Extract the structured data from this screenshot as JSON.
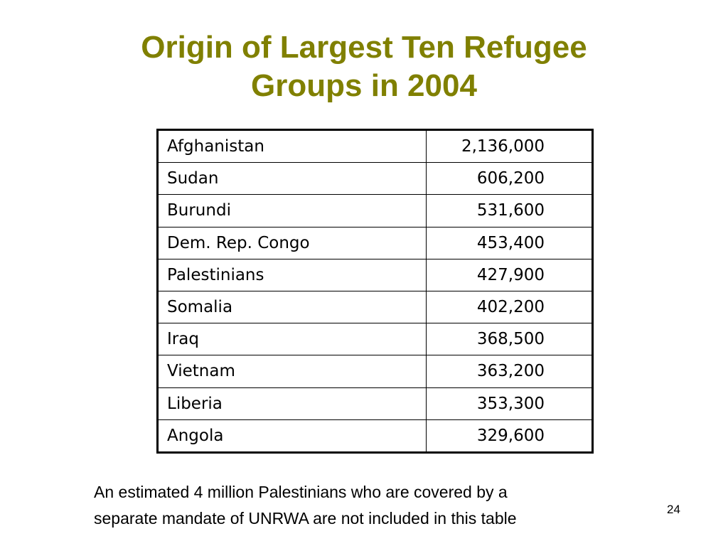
{
  "slide": {
    "title_line1": "Origin of Largest Ten Refugee",
    "title_line2": "Groups in 2004",
    "title_color": "#808000",
    "table": {
      "rows": [
        {
          "country": "Afghanistan",
          "value": "2,136,000"
        },
        {
          "country": "Sudan",
          "value": "606,200"
        },
        {
          "country": "Burundi",
          "value": "531,600"
        },
        {
          "country": "Dem. Rep. Congo",
          "value": "453,400"
        },
        {
          "country": "Palestinians",
          "value": "427,900"
        },
        {
          "country": "Somalia",
          "value": "402,200"
        },
        {
          "country": "Iraq",
          "value": "368,500"
        },
        {
          "country": "Vietnam",
          "value": "363,200"
        },
        {
          "country": "Liberia",
          "value": "353,300"
        },
        {
          "country": "Angola",
          "value": "329,600"
        }
      ]
    },
    "note_line1": "An estimated 4 million Palestinians who are covered by a",
    "note_line2": "separate mandate of UNRWA are not included in this table",
    "page_number": "24"
  }
}
